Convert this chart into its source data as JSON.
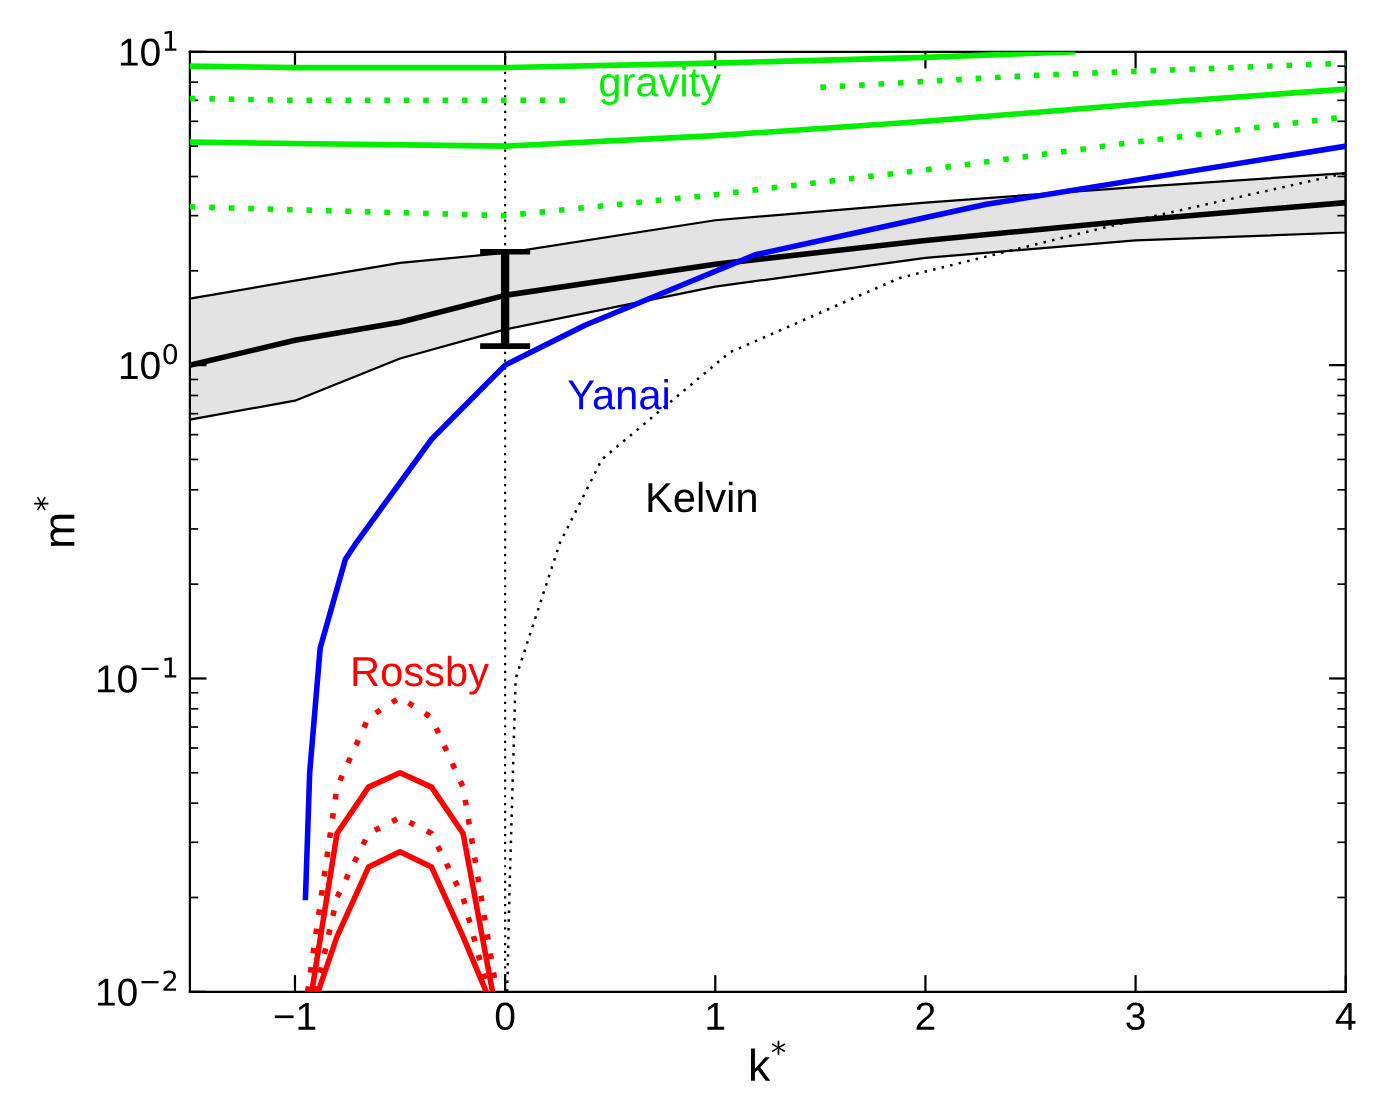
{
  "chart_data": {
    "type": "line",
    "xlabel": "k$^{*}$",
    "ylabel": "m$^{*}$",
    "log": "y",
    "xlim": [
      -1.5,
      4
    ],
    "ylim": [
      0.01,
      10
    ],
    "xticks": [
      {
        "value": -1,
        "label": "−1"
      },
      0,
      1,
      2,
      3,
      4
    ],
    "yticks": [
      {
        "value": 0.01,
        "label": "10$^{−2}$"
      },
      {
        "value": 0.1,
        "label": "10$^{−1}$"
      },
      {
        "value": 1,
        "label": "10$^{0}$"
      },
      {
        "value": 10,
        "label": "10$^{1}$"
      }
    ],
    "grid": false,
    "legend": false,
    "marker": "none",
    "ref_lines": [
      {
        "axis": "x",
        "value": 0,
        "color": "#000000",
        "line_style": "dotted"
      }
    ],
    "series": [
      {
        "color": "#00ee00",
        "line_style": "solid",
        "x": [
          -1.5,
          -1,
          0,
          1,
          2,
          2.7
        ],
        "values": [
          9.0,
          8.9,
          8.9,
          9.2,
          9.6,
          10
        ]
      },
      {
        "color": "#00ee00",
        "line_style": "dotted",
        "x": [
          -1.5,
          -1,
          0,
          0.3,
          1,
          1.5,
          2.5,
          4
        ],
        "values": [
          7.1,
          7.0,
          7.0,
          7.0,
          null,
          7.7,
          8.4,
          9.2
        ]
      },
      {
        "color": "#00ee00",
        "line_style": "solid",
        "x": [
          -1.5,
          0,
          1,
          2,
          3,
          4
        ],
        "values": [
          5.15,
          5.0,
          5.4,
          6.0,
          6.8,
          7.6
        ]
      },
      {
        "color": "#00ee00",
        "line_style": "dotted",
        "x": [
          -1.5,
          0,
          1,
          2,
          3,
          4
        ],
        "values": [
          3.2,
          3.0,
          3.5,
          4.2,
          5.15,
          6.2
        ]
      },
      {
        "color": "#000000",
        "line_style": "solid",
        "x": [
          -1.5,
          -1,
          -0.5,
          0,
          1,
          2,
          3,
          4
        ],
        "values": [
          1.0,
          1.2,
          1.37,
          1.67,
          2.1,
          2.5,
          2.9,
          3.3
        ],
        "lower": [
          0.67,
          0.77,
          1.05,
          1.3,
          1.78,
          2.2,
          2.5,
          2.65
        ],
        "upper": [
          1.63,
          1.86,
          2.12,
          2.28,
          2.9,
          3.3,
          3.7,
          4.1
        ],
        "errors": [
          null,
          null,
          null,
          [
            1.15,
            2.3
          ],
          null,
          null,
          null,
          null
        ]
      },
      {
        "color": "#0000ff",
        "line_style": "solid",
        "x": [
          -0.95,
          -0.93,
          -0.88,
          -0.76,
          -0.71,
          -0.35,
          0,
          0.38,
          1.19,
          2.29,
          4
        ],
        "values": [
          0.02,
          0.05,
          0.125,
          0.24,
          0.27,
          0.58,
          1.0,
          1.34,
          2.25,
          3.26,
          5.0
        ]
      },
      {
        "color": "#000000",
        "line_style": "dotted",
        "x": [
          0.01,
          0.02,
          0.05,
          0.26,
          0.46,
          1.07,
          1.88,
          2.9,
          4
        ],
        "values": [
          0.01,
          0.02,
          0.1,
          0.27,
          0.5,
          1.1,
          1.9,
          2.8,
          4.1
        ]
      },
      {
        "color": "#ff0000",
        "line_style": "dotted",
        "x": [
          -0.94,
          -0.8,
          -0.65,
          -0.5,
          -0.35,
          -0.2,
          -0.04
        ],
        "values": [
          0.01,
          0.045,
          0.075,
          0.087,
          0.075,
          0.045,
          0.01
        ]
      },
      {
        "color": "#ff0000",
        "line_style": "solid",
        "x": [
          -0.92,
          -0.8,
          -0.65,
          -0.5,
          -0.35,
          -0.2,
          -0.06
        ],
        "values": [
          0.01,
          0.032,
          0.045,
          0.05,
          0.045,
          0.032,
          0.01
        ]
      },
      {
        "color": "#ff0000",
        "line_style": "dotted",
        "x": [
          -0.9,
          -0.8,
          -0.65,
          -0.5,
          -0.35,
          -0.2,
          -0.08
        ],
        "values": [
          0.01,
          0.02,
          0.032,
          0.036,
          0.032,
          0.02,
          0.01
        ]
      },
      {
        "color": "#ff0000",
        "line_style": "solid",
        "x": [
          -0.89,
          -0.8,
          -0.65,
          -0.5,
          -0.35,
          -0.2,
          -0.09
        ],
        "values": [
          0.01,
          0.015,
          0.025,
          0.028,
          0.025,
          0.015,
          0.01
        ]
      }
    ],
    "annotations": [
      {
        "text": "Yanai",
        "x": 0,
        "y": 1.0
      },
      {
        "text": "Kelvin",
        "x": 0.46,
        "y": 0.5
      },
      {
        "text": "gravity",
        "x": 1,
        "y": 5.4
      },
      {
        "text": "Rossby",
        "x": -0.5,
        "y": 0.087
      }
    ]
  }
}
